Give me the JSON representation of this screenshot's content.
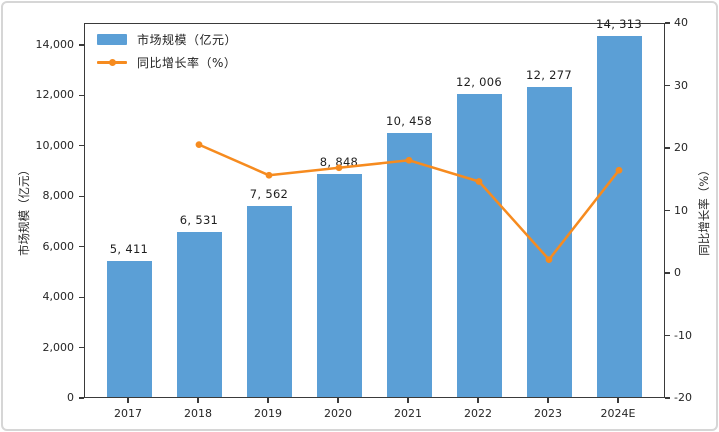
{
  "chart_data": {
    "type": "bar",
    "subtype": "combo-bar-line-dual-axis",
    "categories": [
      "2017",
      "2018",
      "2019",
      "2020",
      "2021",
      "2022",
      "2023",
      "2024E"
    ],
    "series": [
      {
        "name": "市场规模（亿元）",
        "type": "bar",
        "axis": "left",
        "color": "#5B9FD6",
        "values": [
          5411,
          6531,
          7562,
          8848,
          10458,
          12006,
          12277,
          14313
        ],
        "labels": [
          "5, 411",
          "6, 531",
          "7, 562",
          "8, 848",
          "10, 458",
          "12, 006",
          "12, 277",
          "14, 313"
        ]
      },
      {
        "name": "同比增长率（%）",
        "type": "line",
        "axis": "right",
        "color": "#F68B1F",
        "values": [
          null,
          20.7,
          15.8,
          17.0,
          18.2,
          14.8,
          2.3,
          16.6
        ]
      }
    ],
    "left_axis": {
      "title": "市场规模（亿元）",
      "min": 0,
      "max": 14873,
      "ticks": [
        0,
        2000,
        4000,
        6000,
        8000,
        10000,
        12000,
        14000
      ],
      "tick_labels": [
        "0",
        "2,000",
        "4,000",
        "6,000",
        "8,000",
        "10,000",
        "12,000",
        "14,000"
      ]
    },
    "right_axis": {
      "title": "同比增长率（%）",
      "min": -20,
      "max": 40,
      "ticks": [
        -20,
        -10,
        0,
        10,
        20,
        30,
        40
      ],
      "tick_labels": [
        "-20",
        "-10",
        "0",
        "10",
        "20",
        "30",
        "40"
      ]
    },
    "title": "",
    "grid": false,
    "legend_position": "upper-left-inside"
  },
  "colors": {
    "bar": "#5B9FD6",
    "line": "#F68B1F",
    "spine": "#3a3a3a",
    "text": "#262626",
    "frame_border": "#d6d6d6"
  }
}
